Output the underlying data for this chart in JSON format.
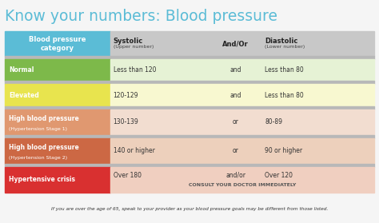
{
  "title": "Know your numbers: Blood pressure",
  "title_color": "#5bbcd6",
  "footer": "If you are over the age of 65, speak to your provider as your blood pressure goals may be different from those listed.",
  "header": {
    "col0_line1": "Blood pressure",
    "col0_line2": "category",
    "col1_line1": "Systolic",
    "col1_line2": "(Upper number)",
    "col2_line1": "And/Or",
    "col3_line1": "Diastolic",
    "col3_line2": "(Lower number)"
  },
  "header_bg": "#5bbcd6",
  "header_gray_bg": "#c8c8c8",
  "separator_bg": "#b8b8b8",
  "rows": [
    {
      "cat_text": "Normal",
      "cat_sub": "",
      "cat_bg": "#7db94a",
      "row_bg": "#e6f2d5",
      "systolic": "Less than 120",
      "andor": "and",
      "diastolic": "Less than 80"
    },
    {
      "cat_text": "Elevated",
      "cat_sub": "",
      "cat_bg": "#e8e44e",
      "row_bg": "#f8f8d0",
      "systolic": "120-129",
      "andor": "and",
      "diastolic": "Less than 80"
    },
    {
      "cat_text": "High blood pressure",
      "cat_sub": "(Hypertension Stage 1)",
      "cat_bg": "#e09870",
      "row_bg": "#f2ddd0",
      "systolic": "130-139",
      "andor": "or",
      "diastolic": "80-89"
    },
    {
      "cat_text": "High blood pressure",
      "cat_sub": "(Hypertension Stage 2)",
      "cat_bg": "#cc6844",
      "row_bg": "#edd0bc",
      "systolic": "140 or higher",
      "andor": "or",
      "diastolic": "90 or higher"
    },
    {
      "cat_text": "Hypertensive crisis",
      "cat_sub": "",
      "cat_bg": "#d93030",
      "row_bg": "#f0cfc0",
      "systolic": "Over 180",
      "andor": "and/or",
      "diastolic": "Over 120",
      "extra": "CONSULT YOUR DOCTOR IMMEDIATELY"
    }
  ],
  "separator_color": "#a8a8a8",
  "bg_color": "#f5f5f5"
}
